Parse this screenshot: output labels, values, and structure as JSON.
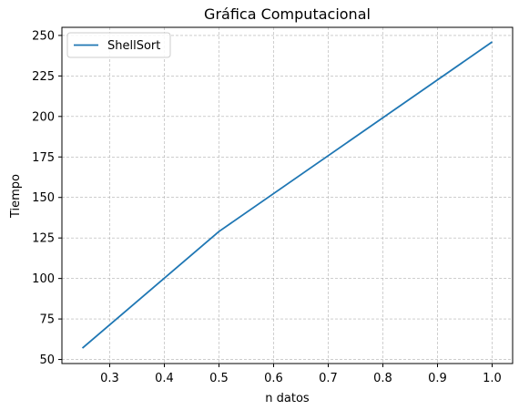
{
  "chart_data": {
    "type": "line",
    "title": "Gráfica Computacional",
    "xlabel": "n datos",
    "ylabel": "Tiempo",
    "xlim": [
      0.2125,
      1.0375
    ],
    "ylim": [
      47.5,
      255.0
    ],
    "xticks": [
      0.3,
      0.4,
      0.5,
      0.6,
      0.7,
      0.8,
      0.9,
      1.0
    ],
    "xtick_labels": [
      "0.3",
      "0.4",
      "0.5",
      "0.6",
      "0.7",
      "0.8",
      "0.9",
      "1.0"
    ],
    "yticks": [
      50,
      75,
      100,
      125,
      150,
      175,
      200,
      225,
      250
    ],
    "ytick_labels": [
      "50",
      "75",
      "100",
      "125",
      "150",
      "175",
      "200",
      "225",
      "250"
    ],
    "grid": true,
    "legend_position": "upper-left",
    "series": [
      {
        "name": "ShellSort",
        "color": "#1f77b4",
        "x": [
          0.25,
          0.5,
          1.0
        ],
        "y": [
          57,
          129,
          246
        ]
      }
    ]
  }
}
